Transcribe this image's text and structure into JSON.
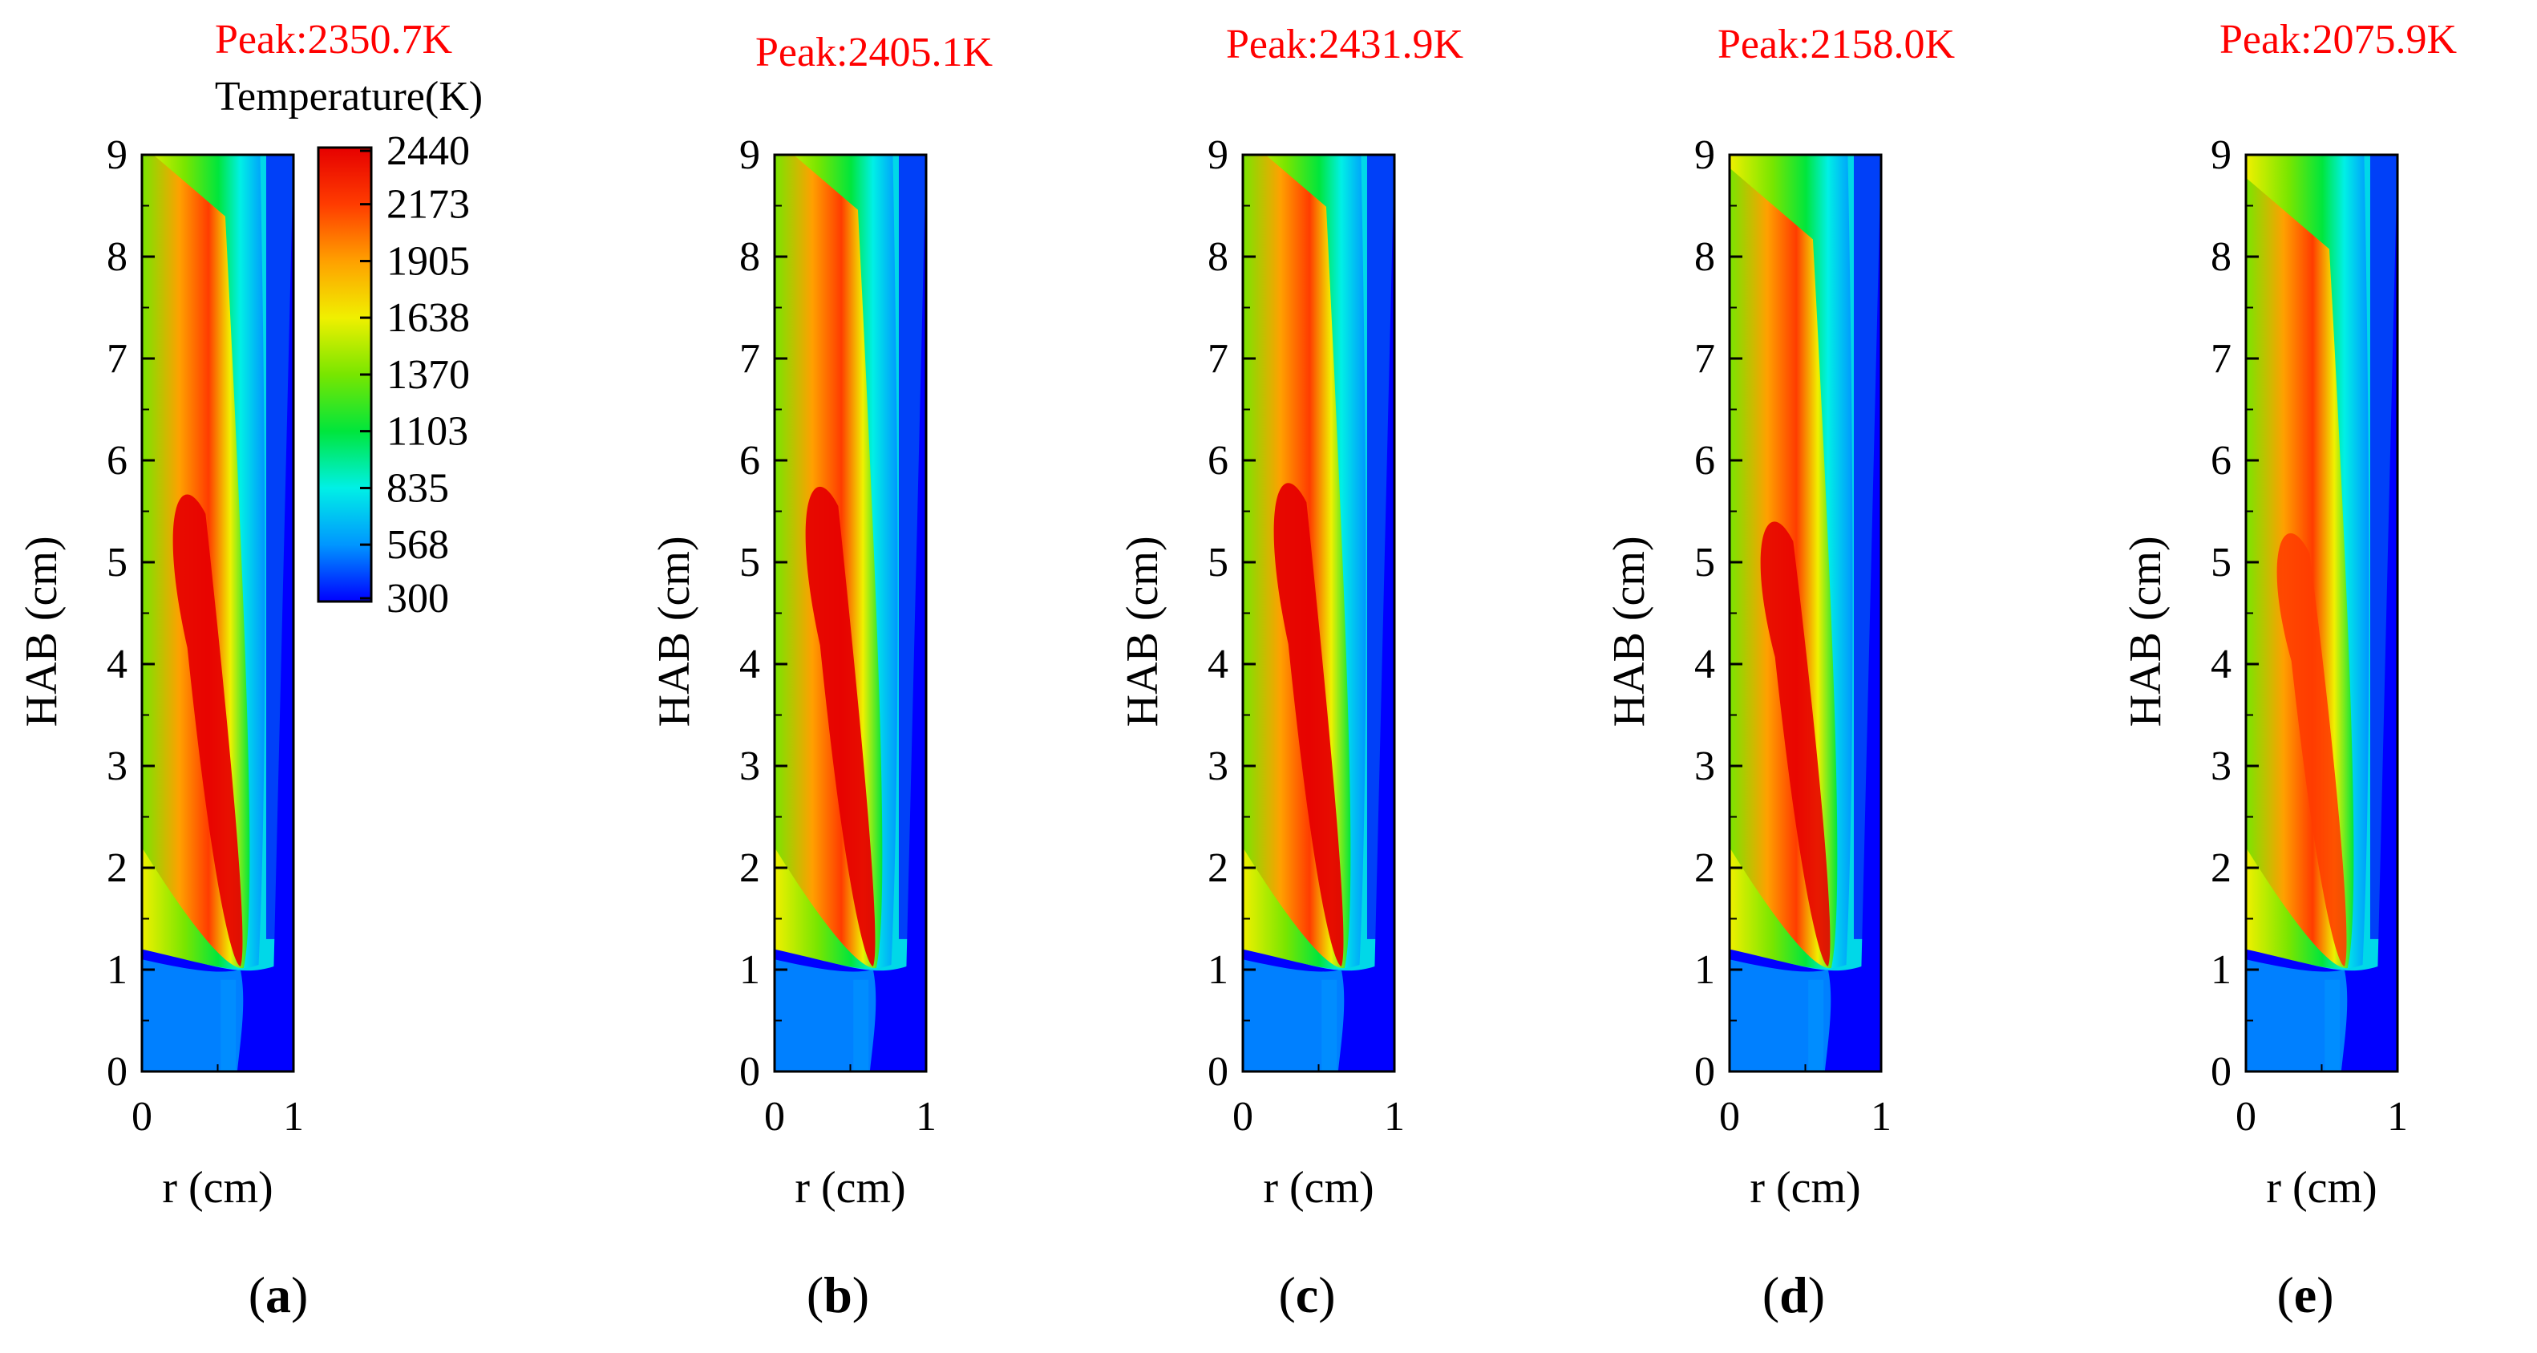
{
  "figure": {
    "colorbar": {
      "title": "Temperature(K)",
      "ticks": [
        2440,
        2173,
        1905,
        1638,
        1370,
        1103,
        835,
        568,
        300
      ],
      "range": [
        300,
        2440
      ],
      "colormap": [
        "#0000ff",
        "#0096ff",
        "#00f0e6",
        "#00e63c",
        "#78e600",
        "#f0f000",
        "#ffa000",
        "#ff3c00",
        "#e60000"
      ]
    },
    "panels": [
      {
        "peak_label": "Peak:2350.7K",
        "panel_label": "(a)",
        "letter": "a"
      },
      {
        "peak_label": "Peak:2405.1K",
        "panel_label": "(b)",
        "letter": "b"
      },
      {
        "peak_label": "Peak:2431.9K",
        "panel_label": "(c)",
        "letter": "c"
      },
      {
        "peak_label": "Peak:2158.0K",
        "panel_label": "(d)",
        "letter": "d"
      },
      {
        "peak_label": "Peak:2075.9K",
        "panel_label": "(e)",
        "letter": "e"
      }
    ]
  },
  "chart_data": [
    {
      "type": "heatmap",
      "panel": "a",
      "title": "Peak:2350.7K",
      "quantity": "Temperature(K)",
      "peak_K": 2350.7,
      "xlabel": "r (cm)",
      "ylabel": "HAB (cm)",
      "xlim": [
        0,
        1
      ],
      "ylim": [
        0,
        9
      ],
      "xticks": [
        0,
        1
      ],
      "yticks": [
        0,
        1,
        2,
        3,
        4,
        5,
        6,
        7,
        8,
        9
      ],
      "flame_tip_r": 0.65,
      "flame_tip_hab": 1.0
    },
    {
      "type": "heatmap",
      "panel": "b",
      "title": "Peak:2405.1K",
      "quantity": "Temperature(K)",
      "peak_K": 2405.1,
      "xlabel": "r (cm)",
      "ylabel": "HAB (cm)",
      "xlim": [
        0,
        1
      ],
      "ylim": [
        0,
        9
      ],
      "xticks": [
        0,
        1
      ],
      "yticks": [
        0,
        1,
        2,
        3,
        4,
        5,
        6,
        7,
        8,
        9
      ],
      "flame_tip_r": 0.65,
      "flame_tip_hab": 1.0
    },
    {
      "type": "heatmap",
      "panel": "c",
      "title": "Peak:2431.9K",
      "quantity": "Temperature(K)",
      "peak_K": 2431.9,
      "xlabel": "r (cm)",
      "ylabel": "HAB (cm)",
      "xlim": [
        0,
        1
      ],
      "ylim": [
        0,
        9
      ],
      "xticks": [
        0,
        1
      ],
      "yticks": [
        0,
        1,
        2,
        3,
        4,
        5,
        6,
        7,
        8,
        9
      ],
      "flame_tip_r": 0.65,
      "flame_tip_hab": 1.0
    },
    {
      "type": "heatmap",
      "panel": "d",
      "title": "Peak:2158.0K",
      "quantity": "Temperature(K)",
      "peak_K": 2158.0,
      "xlabel": "r (cm)",
      "ylabel": "HAB (cm)",
      "xlim": [
        0,
        1
      ],
      "ylim": [
        0,
        9
      ],
      "xticks": [
        0,
        1
      ],
      "yticks": [
        0,
        1,
        2,
        3,
        4,
        5,
        6,
        7,
        8,
        9
      ],
      "flame_tip_r": 0.65,
      "flame_tip_hab": 1.0
    },
    {
      "type": "heatmap",
      "panel": "e",
      "title": "Peak:2075.9K",
      "quantity": "Temperature(K)",
      "peak_K": 2075.9,
      "xlabel": "r (cm)",
      "ylabel": "HAB (cm)",
      "xlim": [
        0,
        1
      ],
      "ylim": [
        0,
        9
      ],
      "xticks": [
        0,
        1
      ],
      "yticks": [
        0,
        1,
        2,
        3,
        4,
        5,
        6,
        7,
        8,
        9
      ],
      "flame_tip_r": 0.65,
      "flame_tip_hab": 1.0
    }
  ]
}
